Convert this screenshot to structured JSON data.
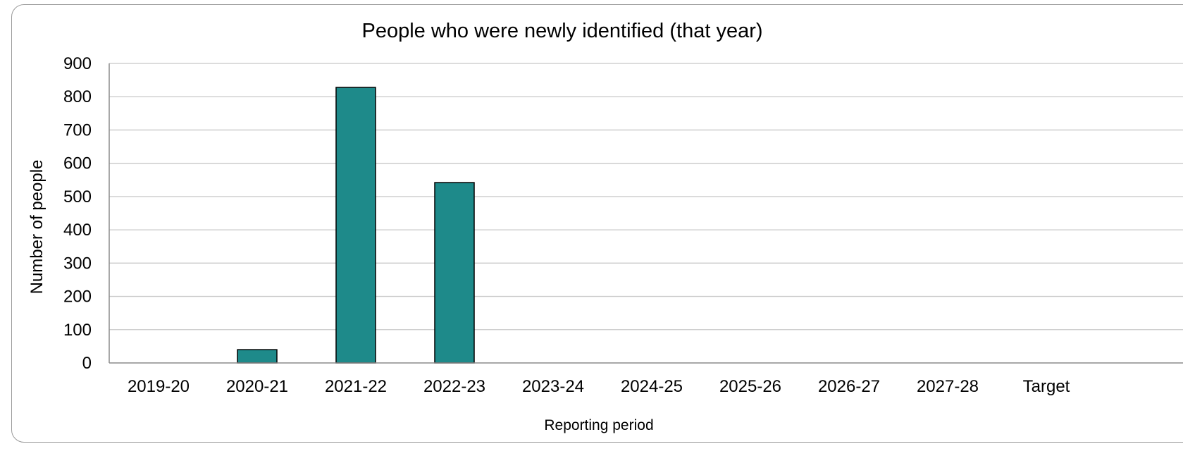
{
  "chart_data": {
    "type": "bar",
    "title": "People who were newly identified (that year)",
    "xlabel": "Reporting period",
    "ylabel": "Number of people",
    "categories": [
      "2019-20",
      "2020-21",
      "2021-22",
      "2022-23",
      "2023-24",
      "2024-25",
      "2025-26",
      "2026-27",
      "2027-28",
      "Target"
    ],
    "values": [
      0,
      40,
      828,
      542,
      0,
      0,
      0,
      0,
      0,
      0
    ],
    "ylim": [
      0,
      900
    ],
    "yticks": [
      0,
      100,
      200,
      300,
      400,
      500,
      600,
      700,
      800,
      900
    ],
    "grid": true,
    "bar_color": "#1e8a8a",
    "bar_edge_color": "#000000",
    "grid_color": "#c8c8c8"
  }
}
